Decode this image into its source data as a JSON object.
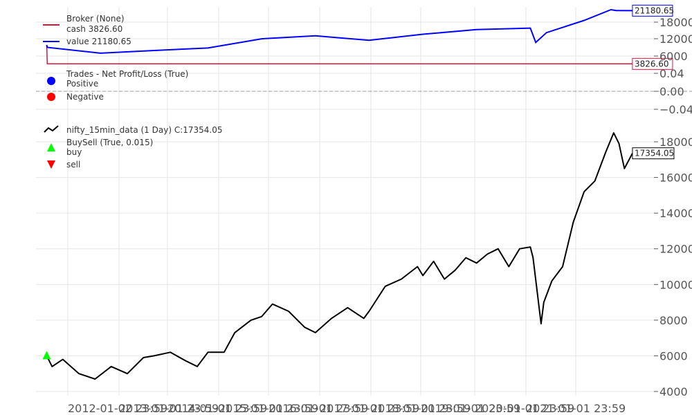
{
  "chart_data": [
    {
      "type": "line",
      "panel": "broker",
      "legend": [
        "Broker (None)",
        "cash 3826.60",
        "value 21180.65"
      ],
      "yticks": [
        "18000",
        "12000",
        "6000"
      ],
      "ylim": [
        3000,
        21500
      ],
      "grid": true,
      "series": [
        {
          "name": "cash",
          "color": "#dc143c",
          "label": "3826.60",
          "x": [
            2011.0,
            2011.01,
            2021.9
          ],
          "y": [
            10000,
            3826.6,
            3826.6
          ]
        },
        {
          "name": "value",
          "color": "#0000ff",
          "label": "21180.65",
          "x": [
            2011.0,
            2011.01,
            2012.0,
            2013.0,
            2014.0,
            2015.0,
            2016.0,
            2017.0,
            2018.0,
            2019.0,
            2020.0,
            2020.1,
            2020.3,
            2021.0,
            2021.5,
            2021.6,
            2021.9
          ],
          "y": [
            10000,
            9200,
            7300,
            8200,
            9000,
            12000,
            13000,
            11500,
            13500,
            15000,
            15500,
            10800,
            14000,
            18000,
            21500,
            21200,
            21180.65
          ]
        }
      ]
    },
    {
      "type": "scatter",
      "panel": "trades",
      "legend": [
        "Trades - Net Profit/Loss (True)",
        "Positive",
        "Negative"
      ],
      "legend_colors": [
        "#0000ff",
        "#ff0000"
      ],
      "yticks": [
        "0.04",
        "0.00",
        "−0.04"
      ],
      "ylim": [
        -0.04,
        0.04
      ],
      "grid": true,
      "zero_line": true,
      "points": []
    },
    {
      "type": "line",
      "panel": "price",
      "legend": [
        "nifty_15min_data (1 Day) C:17354.05",
        "BuySell (True, 0.015)",
        "buy",
        "sell"
      ],
      "legend_colors": [
        "#000000",
        "#00ff00",
        "#ff0000"
      ],
      "yticks": [
        "18000",
        "16000",
        "14000",
        "12000",
        "10000",
        "8000",
        "6000",
        "4000"
      ],
      "ylim": [
        4000,
        18000
      ],
      "grid": true,
      "xticks": [
        "2012-01-02 23:59",
        "2013-01-01 23:59",
        "2014-01-01 23:59",
        "2015-01-01 23:59",
        "2016-01-01 23:59",
        "2017-01-01 23:59",
        "2018-01-01 23:59",
        "2019-01-01 23:59",
        "2020-01-01 23:59",
        "2021-01-01 23:59"
      ],
      "series": [
        {
          "name": "nifty_15min_data",
          "color": "#000000",
          "label": "17354.05",
          "x": [
            2011.0,
            2011.1,
            2011.3,
            2011.6,
            2011.9,
            2012.2,
            2012.5,
            2012.8,
            2013.0,
            2013.3,
            2013.6,
            2013.8,
            2014.0,
            2014.3,
            2014.5,
            2014.8,
            2015.0,
            2015.2,
            2015.5,
            2015.8,
            2016.0,
            2016.3,
            2016.6,
            2016.9,
            2017.0,
            2017.3,
            2017.6,
            2017.9,
            2018.0,
            2018.2,
            2018.4,
            2018.6,
            2018.8,
            2019.0,
            2019.2,
            2019.4,
            2019.6,
            2019.8,
            2020.0,
            2020.05,
            2020.2,
            2020.25,
            2020.4,
            2020.6,
            2020.8,
            2021.0,
            2021.2,
            2021.4,
            2021.55,
            2021.65,
            2021.75,
            2021.9
          ],
          "y": [
            6000,
            5400,
            5800,
            5000,
            4700,
            5400,
            5000,
            5900,
            6000,
            6200,
            5700,
            5400,
            6200,
            6200,
            7300,
            8000,
            8200,
            8900,
            8500,
            7600,
            7300,
            8100,
            8700,
            8100,
            8500,
            9900,
            10300,
            11000,
            10500,
            11300,
            10300,
            10800,
            11500,
            11200,
            11700,
            12000,
            11000,
            12000,
            12100,
            11500,
            7800,
            9000,
            10200,
            11000,
            13500,
            15200,
            15800,
            17400,
            18500,
            17900,
            16500,
            17354.05
          ]
        }
      ],
      "markers": [
        {
          "name": "buy",
          "color": "#00ff00",
          "x": 2011.0,
          "y": 6000
        }
      ]
    }
  ]
}
